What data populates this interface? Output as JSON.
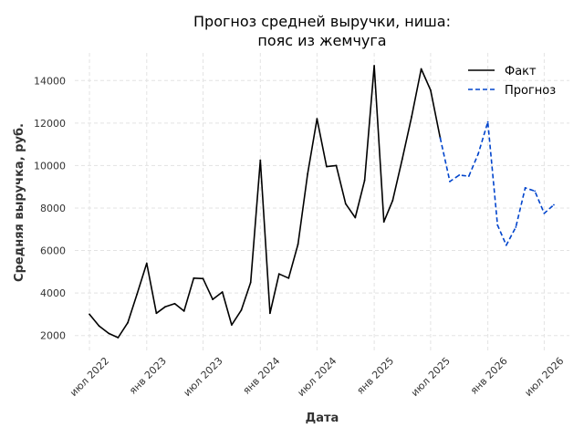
{
  "chart_data": {
    "type": "line",
    "title_lines": [
      "Прогноз средней выручки, ниша:",
      "пояс из жемчуга"
    ],
    "xlabel": "Дата",
    "ylabel": "Средняя выручка, руб.",
    "xlim": [
      "2022-05-15",
      "2026-09-20"
    ],
    "ylim": [
      1300,
      15300
    ],
    "y_ticks": [
      2000,
      4000,
      6000,
      8000,
      10000,
      12000,
      14000
    ],
    "x_ticks": [
      {
        "date": "2022-07-01",
        "label": "июл 2022"
      },
      {
        "date": "2023-01-01",
        "label": "янв 2023"
      },
      {
        "date": "2023-07-01",
        "label": "июл 2023"
      },
      {
        "date": "2024-01-01",
        "label": "янв 2024"
      },
      {
        "date": "2024-07-01",
        "label": "июл 2024"
      },
      {
        "date": "2025-01-01",
        "label": "янв 2025"
      },
      {
        "date": "2025-07-01",
        "label": "июл 2025"
      },
      {
        "date": "2026-01-01",
        "label": "янв 2026"
      },
      {
        "date": "2026-07-01",
        "label": "июл 2026"
      }
    ],
    "grid": true,
    "legend_position": "top-right",
    "series": [
      {
        "name": "Факт",
        "style": "solid",
        "color": "#000000",
        "x": [
          "2022-07-01",
          "2022-08-01",
          "2022-09-01",
          "2022-10-01",
          "2022-11-01",
          "2022-12-01",
          "2023-01-01",
          "2023-02-01",
          "2023-03-01",
          "2023-04-01",
          "2023-05-01",
          "2023-06-01",
          "2023-07-01",
          "2023-08-01",
          "2023-09-01",
          "2023-10-01",
          "2023-11-01",
          "2023-12-01",
          "2024-01-01",
          "2024-02-01",
          "2024-03-01",
          "2024-04-01",
          "2024-05-01",
          "2024-06-01",
          "2024-07-01",
          "2024-08-01",
          "2024-09-01",
          "2024-10-01",
          "2024-11-01",
          "2024-12-01",
          "2025-01-01",
          "2025-02-01",
          "2025-03-01",
          "2025-04-01",
          "2025-05-01",
          "2025-06-01",
          "2025-07-01",
          "2025-08-01"
        ],
        "values": [
          3000,
          2450,
          2100,
          1900,
          2600,
          3950,
          5400,
          3050,
          3350,
          3500,
          3150,
          4700,
          4680,
          3700,
          4050,
          2500,
          3200,
          4500,
          10250,
          3050,
          4900,
          4700,
          6300,
          9600,
          12200,
          9950,
          10000,
          8200,
          7550,
          9300,
          14700,
          7350,
          8350,
          10300,
          12300,
          14550,
          13550,
          11300
        ]
      },
      {
        "name": "Прогноз",
        "style": "dashed",
        "color": "#0044cc",
        "x": [
          "2025-08-01",
          "2025-09-01",
          "2025-10-01",
          "2025-11-01",
          "2025-12-01",
          "2026-01-01",
          "2026-02-01",
          "2026-03-01",
          "2026-04-01",
          "2026-05-01",
          "2026-06-01",
          "2026-07-01",
          "2026-08-01"
        ],
        "values": [
          11300,
          9250,
          9550,
          9500,
          10550,
          12050,
          7200,
          6250,
          7100,
          8950,
          8800,
          7750,
          8150
        ]
      }
    ]
  }
}
